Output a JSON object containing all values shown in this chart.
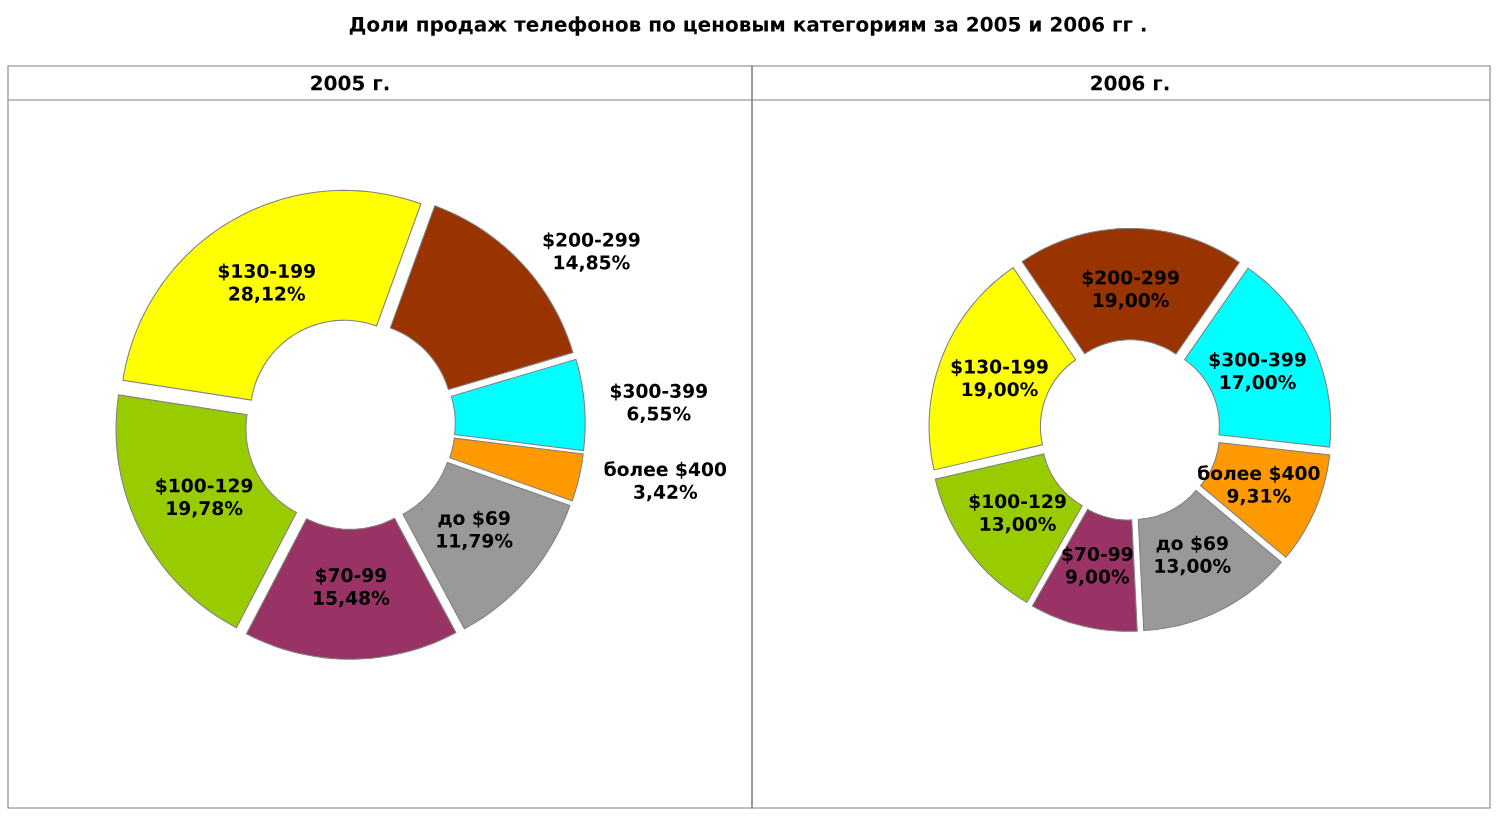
{
  "chart_data": [
    {
      "type": "donut",
      "title": "2005 г.",
      "annotations": [
        "Доли продаж телефонов по ценовым категориям за 2005 и 2006 гг ."
      ],
      "categories": [
        "$200-299",
        "$300-399",
        "более $400",
        "до $69",
        "$70-99",
        "$100-129",
        "$130-199"
      ],
      "values": [
        14.85,
        6.55,
        3.42,
        11.79,
        15.48,
        19.78,
        28.12
      ],
      "value_labels": [
        "14,85%",
        "6,55%",
        "3,42%",
        "11,79%",
        "15,48%",
        "19,78%",
        "28,12%"
      ],
      "colors": [
        "#993300",
        "#00ffff",
        "#ff9900",
        "#999999",
        "#993366",
        "#99cc00",
        "#ffff00"
      ]
    },
    {
      "type": "donut",
      "title": "2006 г.",
      "categories": [
        "$200-299",
        "$300-399",
        "более $400",
        "до $69",
        "$70-99",
        "$100-129",
        "$130-199"
      ],
      "values": [
        19.0,
        17.0,
        9.31,
        13.0,
        9.0,
        13.0,
        19.0
      ],
      "value_labels": [
        "19,00%",
        "17,00%",
        "9,31%",
        "13,00%",
        "9,00%",
        "13,00%",
        "19,00%"
      ],
      "colors": [
        "#993300",
        "#00ffff",
        "#ff9900",
        "#999999",
        "#993366",
        "#99cc00",
        "#ffff00"
      ]
    }
  ]
}
